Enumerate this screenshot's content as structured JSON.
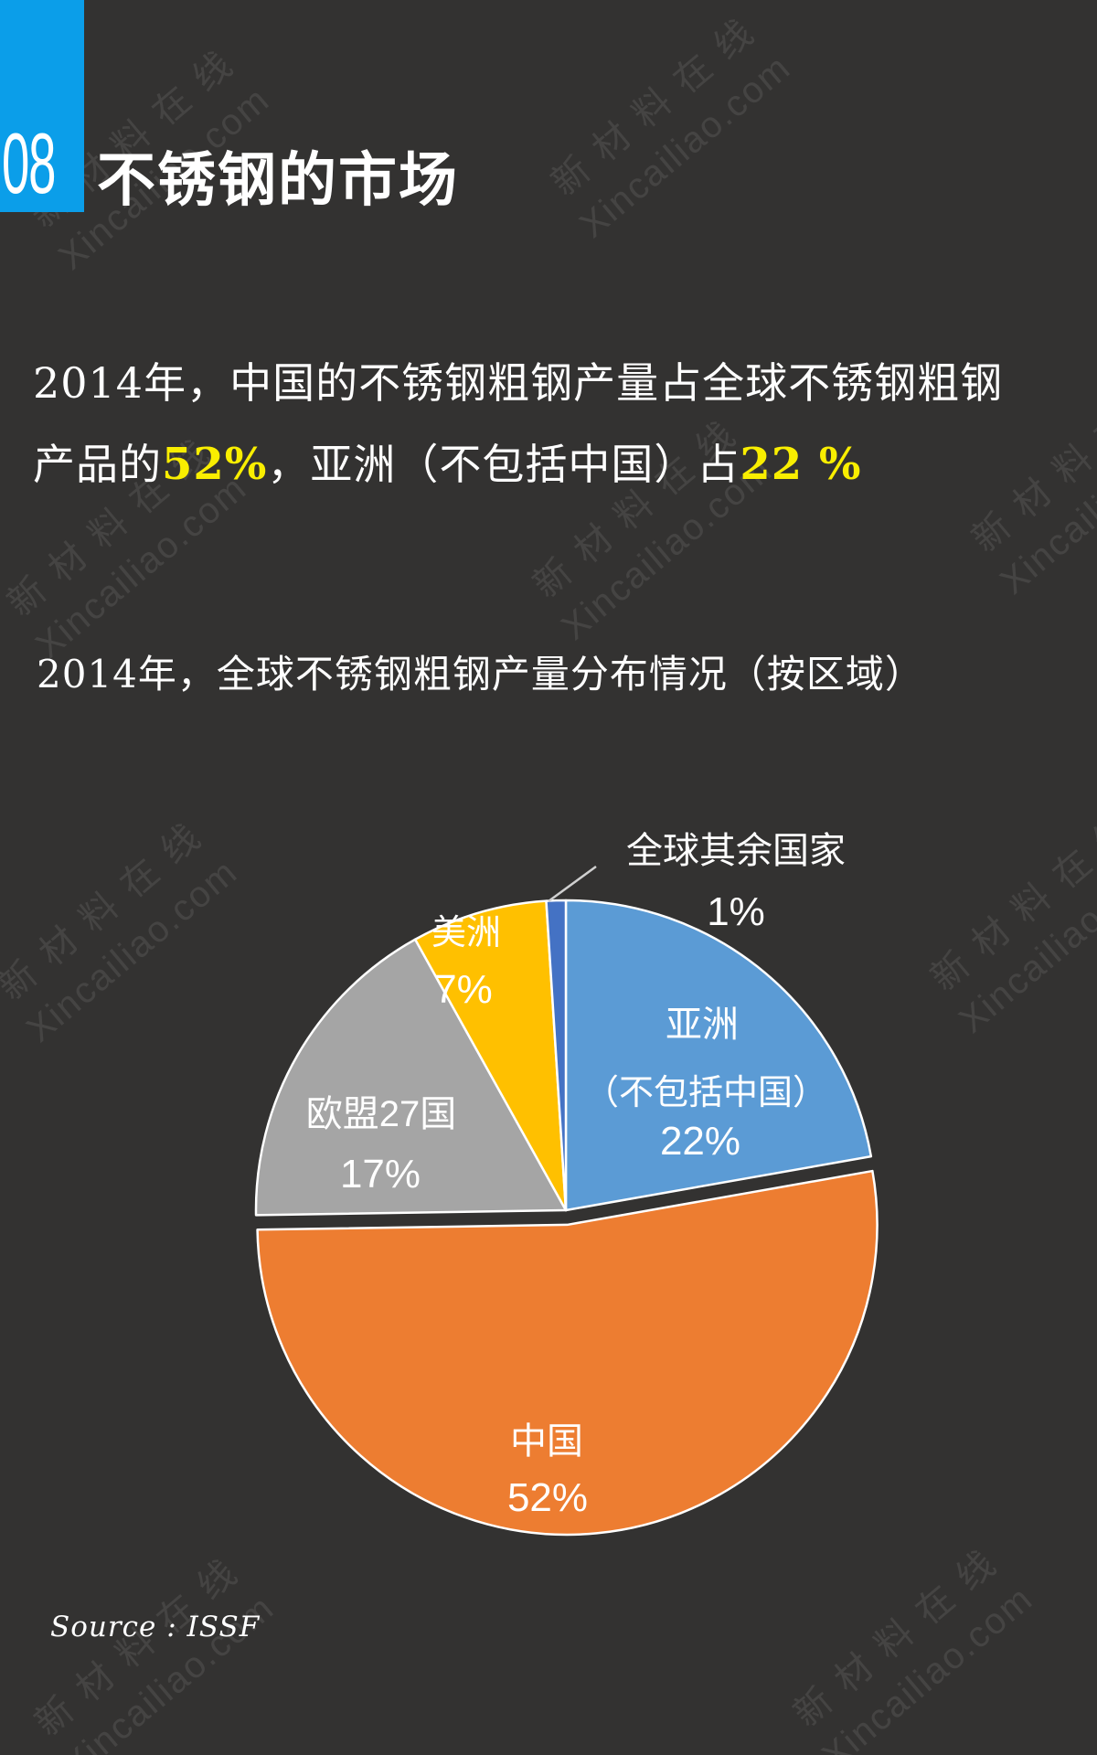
{
  "page": {
    "background_color": "#333231",
    "accent_color": "#0B9EE9",
    "highlight_color": "#F9EE00"
  },
  "header": {
    "section_number": "08",
    "title": "不锈钢的市场"
  },
  "intro": {
    "line1_num": "2014",
    "line1_text": "年，中国的不锈钢粗钢产量占全球不锈钢粗钢",
    "line2_text1": "产品的",
    "line2_hl1": "52%",
    "line2_text2": "，亚洲（不包括中国）占",
    "line2_hl2": "22 %"
  },
  "chart": {
    "caption_num": "2014",
    "caption_text": "年，全球不锈钢粗钢产量分布情况（按区域）"
  },
  "chart_data": {
    "type": "pie",
    "title": "2014年，全球不锈钢粗钢产量分布情况（按区域）",
    "unit": "%",
    "start_angle_deg": 0,
    "direction": "clockwise",
    "legend": "none",
    "slices": [
      {
        "name": "亚洲（不包括中国）",
        "value": 22,
        "pct_label": "22%",
        "color": "#5B9BD5",
        "label_lines": [
          "亚洲",
          "（不包括中国）"
        ],
        "exploded": false
      },
      {
        "name": "中国",
        "value": 52,
        "pct_label": "52%",
        "color": "#ED7D31",
        "label_lines": [
          "中国"
        ],
        "exploded": true
      },
      {
        "name": "欧盟27国",
        "value": 17,
        "pct_label": "17%",
        "color": "#A5A5A5",
        "label_lines": [
          "欧盟27国"
        ],
        "exploded": false
      },
      {
        "name": "美洲",
        "value": 7,
        "pct_label": "7%",
        "color": "#FFC000",
        "label_lines": [
          "美洲"
        ],
        "exploded": false
      },
      {
        "name": "全球其余国家",
        "value": 1,
        "pct_label": "1%",
        "color": "#4472C4",
        "label_lines": [
          "全球其余国家"
        ],
        "exploded": false
      }
    ]
  },
  "source": {
    "text": "Source : ISSF"
  },
  "watermark": {
    "line1": "新材料在线",
    "line2": "Xincailiao.com"
  }
}
